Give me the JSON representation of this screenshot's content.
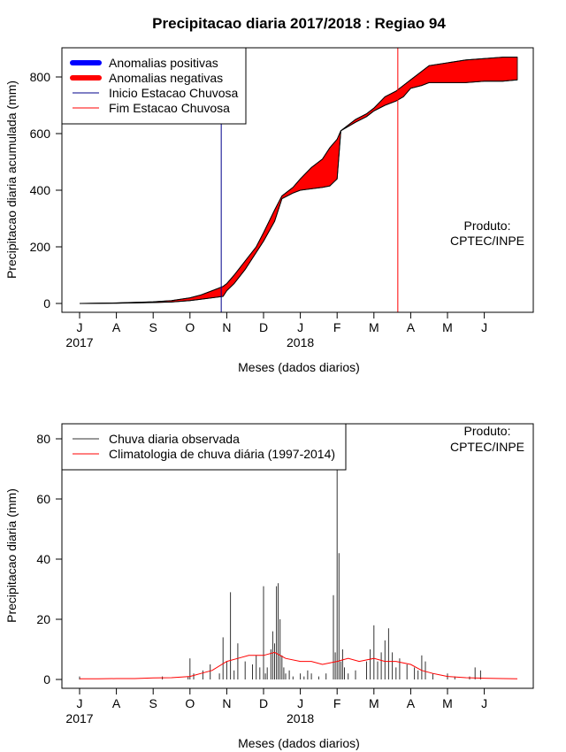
{
  "chart_data": [
    {
      "type": "area",
      "title": "Precipitacao diaria 2017/2018 : Regiao 94",
      "xlabel": "Meses (dados diarios)",
      "ylabel": "Precipitacao diaria acumulada (mm)",
      "ylim": [
        0,
        900
      ],
      "yticks": [
        0,
        200,
        400,
        600,
        800
      ],
      "month_ticks": [
        "J",
        "A",
        "S",
        "O",
        "N",
        "D",
        "J",
        "F",
        "M",
        "A",
        "M",
        "J"
      ],
      "year_labels": [
        {
          "label": "2017",
          "at_month": 0
        },
        {
          "label": "2018",
          "at_month": 6
        }
      ],
      "x_unit": "months since July 2017",
      "observed_cumulative": {
        "x": [
          0,
          1,
          2,
          2.5,
          3,
          3.3,
          3.6,
          3.9,
          4.0,
          4.2,
          4.5,
          4.8,
          5.0,
          5.3,
          5.5,
          5.8,
          6.0,
          6.3,
          6.6,
          6.8,
          7.0,
          7.1,
          7.5,
          7.8,
          8.0,
          8.3,
          8.6,
          8.8,
          9.0,
          9.3,
          9.5,
          10.0,
          10.5,
          11.0,
          11.5,
          11.9
        ],
        "y": [
          0,
          1,
          3,
          5,
          10,
          15,
          20,
          25,
          45,
          70,
          120,
          180,
          220,
          290,
          370,
          390,
          400,
          405,
          410,
          415,
          440,
          610,
          640,
          660,
          680,
          700,
          715,
          730,
          760,
          770,
          780,
          780,
          780,
          785,
          785,
          790
        ]
      },
      "climatology_cumulative": {
        "x": [
          0,
          1,
          2,
          2.5,
          3,
          3.3,
          3.6,
          3.9,
          4.0,
          4.2,
          4.5,
          4.8,
          5.0,
          5.3,
          5.5,
          5.8,
          6.0,
          6.3,
          6.6,
          6.8,
          7.0,
          7.1,
          7.5,
          7.8,
          8.0,
          8.3,
          8.6,
          8.8,
          9.0,
          9.3,
          9.5,
          10.0,
          10.5,
          11.0,
          11.5,
          11.9
        ],
        "y": [
          0,
          2,
          6,
          10,
          20,
          30,
          45,
          60,
          70,
          100,
          150,
          200,
          250,
          330,
          380,
          410,
          440,
          480,
          510,
          550,
          580,
          610,
          650,
          670,
          690,
          730,
          750,
          770,
          790,
          820,
          840,
          850,
          860,
          865,
          870,
          870
        ]
      },
      "inicio_estacao_month": 3.85,
      "fim_estacao_month": 8.65,
      "legend": {
        "position": "top-left",
        "items": [
          {
            "label": "Anomalias positivas",
            "color": "#0000ff",
            "style": "thick"
          },
          {
            "label": "Anomalias negativas",
            "color": "#ff0000",
            "style": "thick"
          },
          {
            "label": "Inicio Estacao Chuvosa",
            "color": "#00008b",
            "style": "thin"
          },
          {
            "label": "Fim Estacao Chuvosa",
            "color": "#ff0000",
            "style": "thin"
          }
        ]
      },
      "annotation": [
        "Produto:",
        "CPTEC/INPE"
      ]
    },
    {
      "type": "bar",
      "xlabel": "Meses (dados diarios)",
      "ylabel": "Precipitacao diaria (mm)",
      "ylim": [
        0,
        85
      ],
      "yticks": [
        0,
        20,
        40,
        60,
        80
      ],
      "month_ticks": [
        "J",
        "A",
        "S",
        "O",
        "N",
        "D",
        "J",
        "F",
        "M",
        "A",
        "M",
        "J"
      ],
      "year_labels": [
        {
          "label": "2017",
          "at_month": 0
        },
        {
          "label": "2018",
          "at_month": 6
        }
      ],
      "x_unit": "months since July 2017",
      "observed_daily": {
        "x": [
          0.0,
          2.25,
          2.95,
          3.0,
          3.1,
          3.35,
          3.55,
          3.8,
          3.9,
          4.0,
          4.1,
          4.2,
          4.3,
          4.5,
          4.7,
          4.8,
          4.9,
          5.0,
          5.05,
          5.1,
          5.2,
          5.25,
          5.3,
          5.35,
          5.4,
          5.45,
          5.5,
          5.55,
          5.6,
          5.7,
          5.8,
          6.0,
          6.1,
          6.2,
          6.3,
          6.5,
          6.7,
          6.9,
          6.95,
          7.0,
          7.05,
          7.1,
          7.15,
          7.2,
          7.3,
          7.5,
          7.8,
          7.9,
          8.0,
          8.1,
          8.2,
          8.3,
          8.4,
          8.5,
          8.6,
          8.7,
          8.9,
          9.1,
          9.2,
          9.3,
          9.4,
          9.6,
          10.0,
          10.2,
          10.6,
          10.75,
          10.9
        ],
        "y": [
          1,
          1,
          1,
          7,
          2,
          3,
          5,
          2,
          14,
          6,
          29,
          3,
          12,
          6,
          5,
          8,
          4,
          31,
          2,
          4,
          10,
          16,
          12,
          31,
          32,
          20,
          8,
          4,
          2,
          3,
          1,
          2,
          1,
          3,
          2,
          1,
          2,
          28,
          9,
          70,
          42,
          6,
          10,
          4,
          2,
          3,
          6,
          10,
          18,
          6,
          9,
          13,
          17,
          9,
          4,
          7,
          5,
          4,
          3,
          8,
          6,
          2,
          2,
          1,
          1,
          4,
          3
        ]
      },
      "climatology_daily": {
        "x": [
          0,
          0.5,
          1,
          1.5,
          2,
          2.5,
          3,
          3.3,
          3.6,
          4.0,
          4.3,
          4.6,
          5.0,
          5.3,
          5.6,
          6.0,
          6.3,
          6.6,
          7.0,
          7.3,
          7.6,
          8.0,
          8.3,
          8.6,
          9.0,
          9.3,
          9.6,
          10.0,
          10.5,
          11.0,
          11.5,
          11.9
        ],
        "y": [
          0.2,
          0.2,
          0.3,
          0.3,
          0.5,
          0.6,
          1.0,
          2.0,
          3.0,
          6.0,
          7.0,
          8.0,
          8.0,
          9.0,
          7.0,
          6.0,
          6.0,
          5.0,
          6.0,
          7.0,
          6.0,
          7.0,
          6.0,
          6.0,
          5.0,
          3.0,
          2.0,
          1.0,
          0.6,
          0.4,
          0.3,
          0.2
        ]
      },
      "legend": {
        "position": "top-left",
        "items": [
          {
            "label": "Chuva diaria observada",
            "color": "#333333",
            "style": "thin"
          },
          {
            "label": "Climatologia de chuva diária (1997-2014)",
            "color": "#ff0000",
            "style": "thin"
          }
        ]
      },
      "annotation": [
        "Produto:",
        "CPTEC/INPE"
      ]
    }
  ]
}
